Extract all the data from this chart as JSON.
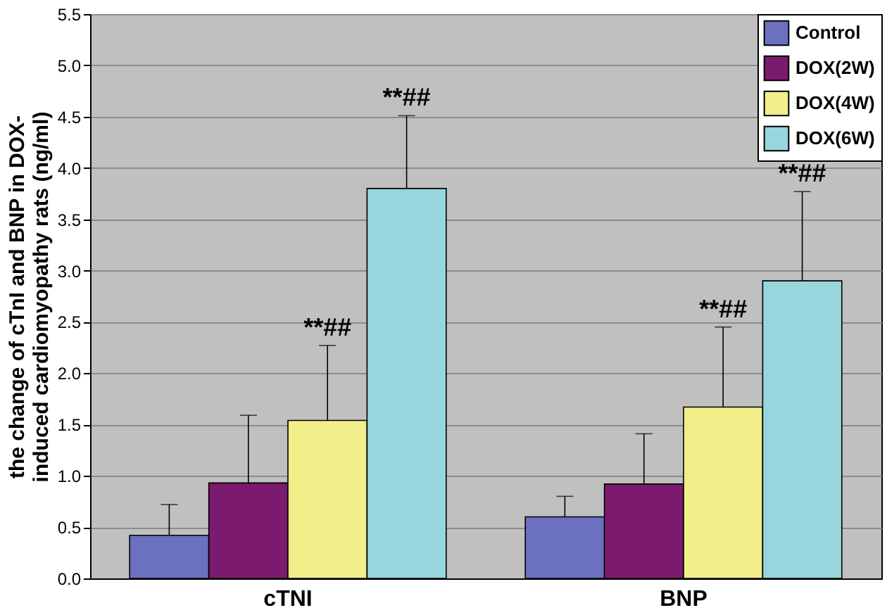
{
  "chart_data": {
    "type": "bar",
    "ylabel": "the change of cTnI and BNP in DOX-induced cardiomyopathy rats (ng/ml)",
    "categories": [
      "cTNI",
      "BNP"
    ],
    "series": [
      {
        "name": "Control",
        "color": "#6b70bf",
        "values": [
          0.42,
          0.6
        ],
        "errors": [
          [
            0.42,
            0.72
          ],
          [
            0.6,
            0.8
          ]
        ]
      },
      {
        "name": "DOX(2W)",
        "color": "#7b1a6e",
        "values": [
          0.93,
          0.92
        ],
        "errors": [
          [
            0.93,
            1.59
          ],
          [
            0.92,
            1.41
          ]
        ]
      },
      {
        "name": "DOX(4W)",
        "color": "#f2ee8a",
        "values": [
          1.54,
          1.67
        ],
        "errors": [
          [
            1.54,
            2.27
          ],
          [
            1.67,
            2.45
          ]
        ]
      },
      {
        "name": "DOX(6W)",
        "color": "#96d6dc",
        "values": [
          3.8,
          2.9
        ],
        "errors": [
          [
            3.8,
            4.51
          ],
          [
            2.9,
            3.77
          ]
        ]
      }
    ],
    "annotations": [
      "**##",
      "**##",
      "**##",
      "**##"
    ],
    "ylim": [
      0,
      5.5
    ],
    "yticks": [
      {
        "value": 0,
        "label": "0.0"
      },
      0.5,
      {
        "value": 1,
        "label": "1.0"
      },
      1.5,
      {
        "value": 2,
        "label": "2.0"
      },
      2.5,
      {
        "value": 3,
        "label": "3.0"
      },
      3.5,
      {
        "value": 4,
        "label": "4.0"
      },
      4.5,
      {
        "value": 5,
        "label": "5.0"
      },
      5.5
    ],
    "grid": "y",
    "legend": "top right"
  }
}
